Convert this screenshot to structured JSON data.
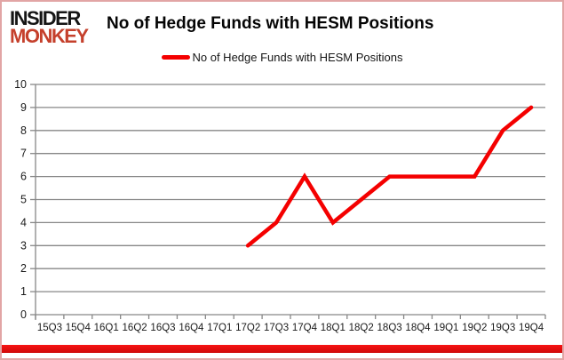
{
  "brand": {
    "line1": "INSIDER",
    "line2": "MONKEY",
    "color_primary": "#151515",
    "color_accent": "#c5402c"
  },
  "header": {
    "title": "No of Hedge Funds with HESM Positions"
  },
  "legend": {
    "label": "No of Hedge Funds with HESM Positions",
    "marker_color": "#f40000"
  },
  "chart_data": {
    "type": "line",
    "title": "No of Hedge Funds with HESM Positions",
    "categories": [
      "15Q3",
      "15Q4",
      "16Q1",
      "16Q2",
      "16Q3",
      "16Q4",
      "17Q1",
      "17Q2",
      "17Q3",
      "17Q4",
      "18Q1",
      "18Q2",
      "18Q3",
      "18Q4",
      "19Q1",
      "19Q2",
      "19Q3",
      "19Q4"
    ],
    "series": [
      {
        "name": "No of Hedge Funds with HESM Positions",
        "color": "#f40000",
        "values": [
          null,
          null,
          null,
          null,
          null,
          null,
          null,
          3,
          4,
          6,
          4,
          5,
          6,
          6,
          6,
          6,
          8,
          9
        ]
      }
    ],
    "ylim": [
      0,
      10
    ],
    "ytick_step": 1,
    "grid": true,
    "grid_color": "#878787",
    "axis_color": "#878787",
    "tick_label_color": "#1a1a1a",
    "legend_position": "top"
  },
  "decor": {
    "border_color": "#e2a5a5",
    "bottom_bar_color": "#ee1111",
    "background": "#ffffff"
  }
}
